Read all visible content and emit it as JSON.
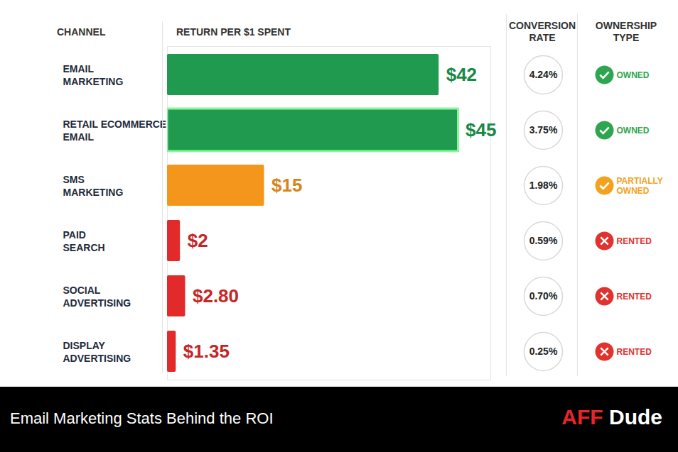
{
  "chart_data": {
    "type": "bar",
    "orientation": "horizontal",
    "title": "Email Marketing Stats Behind the ROI",
    "brand": [
      "AFF",
      "Dude"
    ],
    "column_headers": [
      "CHANNEL",
      "RETURN PER $1 SPENT",
      "CONVERSION RATE",
      "OWNERSHIP TYPE"
    ],
    "categories": [
      "EMAIL MARKETING",
      "RETAIL ECOMMERCE EMAIL",
      "SMS MARKETING",
      "PAID SEARCH",
      "SOCIAL ADVERTISING",
      "DISPLAY ADVERTISING"
    ],
    "values": [
      42,
      45,
      15,
      2,
      2.8,
      1.35
    ],
    "value_labels": [
      "$42",
      "$45",
      "$15",
      "$2",
      "$2.80",
      "$1.35"
    ],
    "colors": [
      "#1f9a4e",
      "#1f9a4e",
      "#f5961c",
      "#e22a2a",
      "#e22a2a",
      "#e22a2a"
    ],
    "data_labels": true,
    "tick_labels": false,
    "xlim": [
      0,
      50
    ],
    "conversion_rates": {
      "values": [
        4.24,
        3.75,
        1.98,
        0.59,
        0.7,
        0.25
      ],
      "value_labels": [
        "4.24%",
        "3.75%",
        "1.98%",
        "0.59%",
        "0.70%",
        "0.25%"
      ]
    },
    "ownership": [
      {
        "label": "OWNED",
        "color": "#2ea64f",
        "marker": "check"
      },
      {
        "label": "OWNED",
        "color": "#2ea64f",
        "marker": "check"
      },
      {
        "label": "PARTIALLY OWNED",
        "color": "#f3a21e",
        "marker": "check"
      },
      {
        "label": "RENTED",
        "color": "#e0322f",
        "marker": "cross"
      },
      {
        "label": "RENTED",
        "color": "#e0322f",
        "marker": "cross"
      },
      {
        "label": "RENTED",
        "color": "#e0322f",
        "marker": "cross"
      }
    ]
  }
}
